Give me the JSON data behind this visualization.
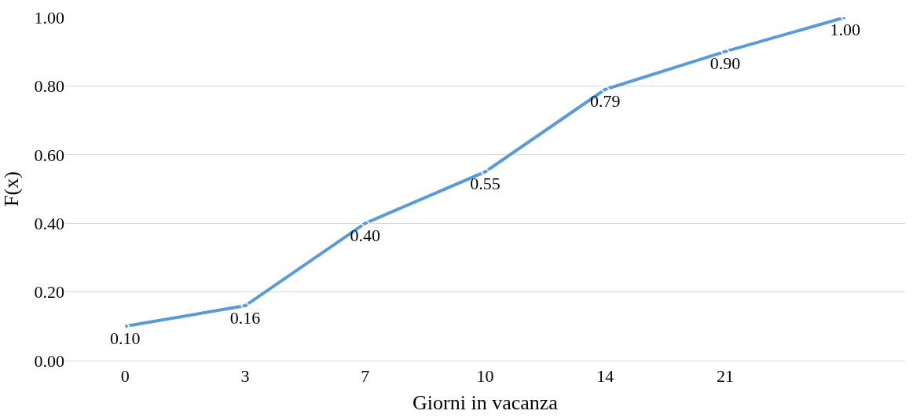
{
  "chart_data": {
    "type": "line",
    "xlabel": "Giorni in vacanza",
    "ylabel": "F(x)",
    "categories": [
      "0",
      "3",
      "7",
      "10",
      "14",
      "21",
      null
    ],
    "series": [
      {
        "color": "#5b9bd5",
        "values": [
          0.1,
          0.16,
          0.4,
          0.55,
          0.79,
          0.9,
          1.0
        ],
        "value_labels": [
          "0.10",
          "0.16",
          "0.40",
          "0.55",
          "0.79",
          "0.90",
          "1.00"
        ]
      }
    ],
    "ylim": [
      0,
      1
    ],
    "yticks": [
      {
        "value": 0,
        "label": "0.00"
      },
      {
        "value": 0.2,
        "label": "0.20"
      },
      {
        "value": 0.4,
        "label": "0.40"
      },
      {
        "value": 0.6,
        "label": "0.60"
      },
      {
        "value": 0.8,
        "label": "0.80"
      },
      {
        "value": 1,
        "label": "1.00"
      }
    ],
    "grid": "y",
    "marker": "diamond",
    "legend": false
  }
}
